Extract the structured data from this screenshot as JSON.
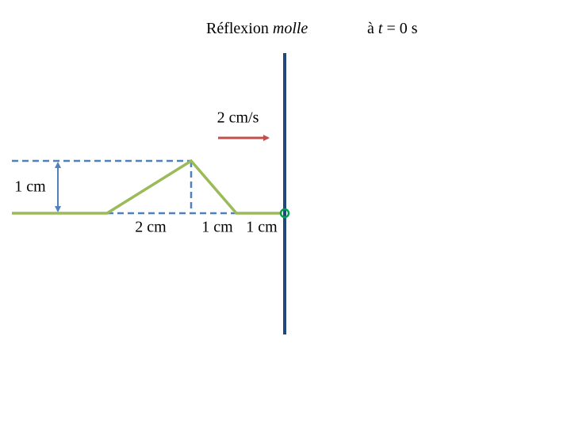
{
  "title": {
    "text": "Réflexion",
    "emphasis": "molle"
  },
  "time": {
    "prefix": "à",
    "variable": "t",
    "rest": "= 0 s"
  },
  "speed_label": "2 cm/s",
  "labels": {
    "height": "1 cm",
    "rise": "2 cm",
    "fall": "1 cm",
    "gap": "1 cm"
  }
}
